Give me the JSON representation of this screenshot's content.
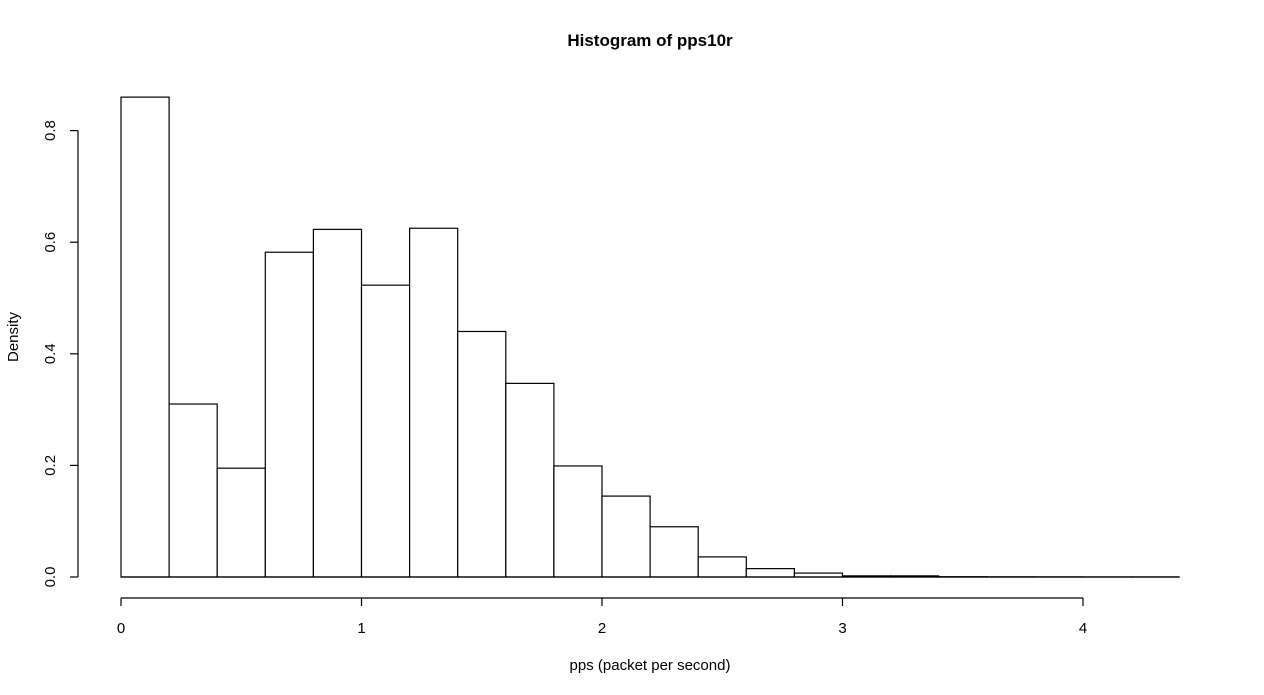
{
  "chart_data": {
    "type": "bar",
    "title": "Histogram of pps10r",
    "xlabel": "pps (packet per second)",
    "ylabel": "Density",
    "bin_edges": [
      0,
      0.2,
      0.4,
      0.6,
      0.8,
      1.0,
      1.2,
      1.4,
      1.6,
      1.8,
      2.0,
      2.2,
      2.4,
      2.6,
      2.8,
      3.0,
      3.2,
      3.4,
      3.6,
      3.8,
      4.0,
      4.2,
      4.4
    ],
    "values": [
      0.86,
      0.31,
      0.195,
      0.582,
      0.623,
      0.523,
      0.625,
      0.44,
      0.347,
      0.199,
      0.145,
      0.09,
      0.036,
      0.015,
      0.007,
      0.002,
      0.002,
      0.0005,
      0.0003,
      0.0002,
      0.0001,
      0.0001
    ],
    "xlim": [
      0,
      4.4
    ],
    "ylim": [
      0,
      0.86
    ],
    "x_ticks": [
      "0",
      "1",
      "2",
      "3",
      "4"
    ],
    "y_ticks": [
      "0.0",
      "0.2",
      "0.4",
      "0.6",
      "0.8"
    ],
    "grid": false,
    "legend": "none",
    "bar_fill": "#ffffff",
    "bar_stroke": "#000000"
  }
}
